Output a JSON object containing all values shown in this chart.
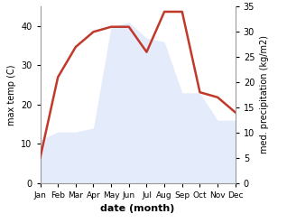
{
  "months": [
    "Jan",
    "Feb",
    "Mar",
    "Apr",
    "May",
    "Jun",
    "Jul",
    "Aug",
    "Sep",
    "Oct",
    "Nov",
    "Dec"
  ],
  "month_indices": [
    1,
    2,
    3,
    4,
    5,
    6,
    7,
    8,
    9,
    10,
    11,
    12
  ],
  "temperature": [
    11,
    13,
    13,
    14,
    40,
    41,
    37,
    36,
    23,
    23,
    16,
    16
  ],
  "precipitation": [
    5,
    21,
    27,
    30,
    31,
    31,
    26,
    34,
    34,
    18,
    17,
    14
  ],
  "temp_fill_color": "#c5d3f5",
  "precip_color": "#c0392b",
  "ylabel_left": "max temp (C)",
  "ylabel_right": "med. precipitation (kg/m2)",
  "xlabel": "date (month)",
  "ylim_left": [
    0,
    45
  ],
  "ylim_right": [
    0,
    35
  ],
  "yticks_left": [
    0,
    10,
    20,
    30,
    40
  ],
  "yticks_right": [
    0,
    5,
    10,
    15,
    20,
    25,
    30,
    35
  ],
  "bg_color": "#ffffff",
  "line_width": 1.8,
  "fill_alpha": 0.45
}
